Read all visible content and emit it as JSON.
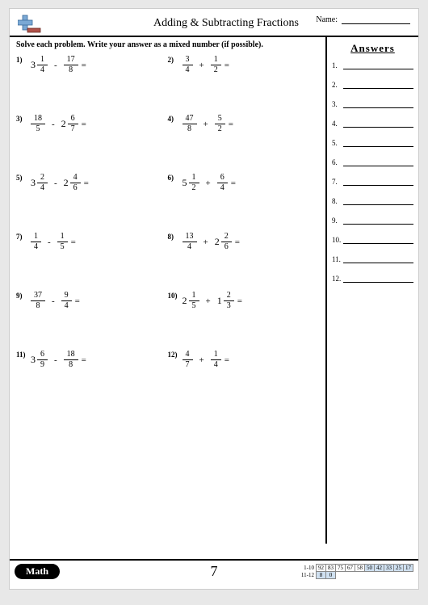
{
  "header": {
    "title": "Adding & Subtracting Fractions",
    "name_label": "Name:"
  },
  "instruction": "Solve each problem. Write your answer as a mixed number (if possible).",
  "answers_title": "Answers",
  "answer_count": 12,
  "problems": [
    {
      "n": "1)",
      "a": {
        "whole": "3",
        "num": "1",
        "den": "4"
      },
      "op": "-",
      "b": {
        "whole": "",
        "num": "17",
        "den": "8"
      }
    },
    {
      "n": "2)",
      "a": {
        "whole": "",
        "num": "3",
        "den": "4"
      },
      "op": "+",
      "b": {
        "whole": "",
        "num": "1",
        "den": "2"
      }
    },
    {
      "n": "3)",
      "a": {
        "whole": "",
        "num": "18",
        "den": "5"
      },
      "op": "-",
      "b": {
        "whole": "2",
        "num": "6",
        "den": "7"
      }
    },
    {
      "n": "4)",
      "a": {
        "whole": "",
        "num": "47",
        "den": "8"
      },
      "op": "+",
      "b": {
        "whole": "",
        "num": "5",
        "den": "2"
      }
    },
    {
      "n": "5)",
      "a": {
        "whole": "3",
        "num": "2",
        "den": "4"
      },
      "op": "-",
      "b": {
        "whole": "2",
        "num": "4",
        "den": "6"
      }
    },
    {
      "n": "6)",
      "a": {
        "whole": "5",
        "num": "1",
        "den": "2"
      },
      "op": "+",
      "b": {
        "whole": "",
        "num": "6",
        "den": "4"
      }
    },
    {
      "n": "7)",
      "a": {
        "whole": "",
        "num": "1",
        "den": "4"
      },
      "op": "-",
      "b": {
        "whole": "",
        "num": "1",
        "den": "5"
      }
    },
    {
      "n": "8)",
      "a": {
        "whole": "",
        "num": "13",
        "den": "4"
      },
      "op": "+",
      "b": {
        "whole": "2",
        "num": "2",
        "den": "6"
      }
    },
    {
      "n": "9)",
      "a": {
        "whole": "",
        "num": "37",
        "den": "8"
      },
      "op": "-",
      "b": {
        "whole": "",
        "num": "9",
        "den": "4"
      }
    },
    {
      "n": "10)",
      "a": {
        "whole": "2",
        "num": "1",
        "den": "5"
      },
      "op": "+",
      "b": {
        "whole": "1",
        "num": "2",
        "den": "3"
      }
    },
    {
      "n": "11)",
      "a": {
        "whole": "3",
        "num": "6",
        "den": "9"
      },
      "op": "-",
      "b": {
        "whole": "",
        "num": "18",
        "den": "8"
      }
    },
    {
      "n": "12)",
      "a": {
        "whole": "",
        "num": "4",
        "den": "7"
      },
      "op": "+",
      "b": {
        "whole": "",
        "num": "1",
        "den": "4"
      }
    }
  ],
  "footer": {
    "math_label": "Math",
    "page_number": "7",
    "score_rows": [
      {
        "label": "1-10",
        "cells": [
          {
            "v": "92",
            "hl": false
          },
          {
            "v": "83",
            "hl": false
          },
          {
            "v": "75",
            "hl": false
          },
          {
            "v": "67",
            "hl": false
          },
          {
            "v": "58",
            "hl": false
          },
          {
            "v": "50",
            "hl": true
          },
          {
            "v": "42",
            "hl": true
          },
          {
            "v": "33",
            "hl": true
          },
          {
            "v": "25",
            "hl": true
          },
          {
            "v": "17",
            "hl": true
          }
        ]
      },
      {
        "label": "11-12",
        "cells": [
          {
            "v": "8",
            "hl": true
          },
          {
            "v": "0",
            "hl": true
          }
        ]
      }
    ]
  },
  "colors": {
    "plus": "#7aa8d4",
    "minus": "#b0524a",
    "highlight": "#cfe0f0"
  }
}
